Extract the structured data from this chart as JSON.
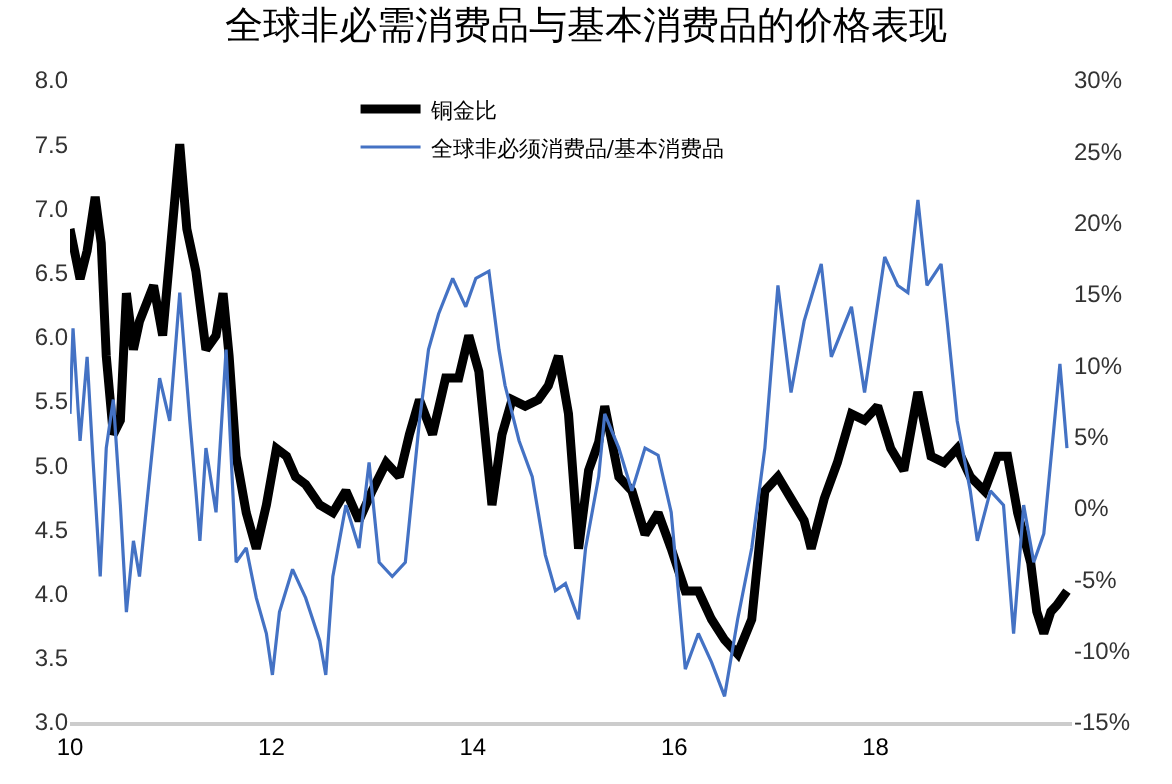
{
  "chart_data": {
    "type": "line",
    "title": "全球非必需消费品与基本消费品的价格表现",
    "xlim": [
      2010,
      2019.95
    ],
    "xticks": [
      {
        "value": 2010,
        "label": "10"
      },
      {
        "value": 2012,
        "label": "12"
      },
      {
        "value": 2014,
        "label": "14"
      },
      {
        "value": 2016,
        "label": "16"
      },
      {
        "value": 2018,
        "label": "18"
      }
    ],
    "ylim": [
      3.0,
      8.0
    ],
    "yticks": [
      {
        "value": 3,
        "label": "3.0"
      },
      {
        "value": 3.5,
        "label": "3.5"
      },
      {
        "value": 4,
        "label": "4.0"
      },
      {
        "value": 4.5,
        "label": "4.5"
      },
      {
        "value": 5,
        "label": "5.0"
      },
      {
        "value": 5.5,
        "label": "5.5"
      },
      {
        "value": 6,
        "label": "6.0"
      },
      {
        "value": 6.5,
        "label": "6.5"
      },
      {
        "value": 7,
        "label": "7.0"
      },
      {
        "value": 7.5,
        "label": "7.5"
      },
      {
        "value": 8,
        "label": "8.0"
      }
    ],
    "y2lim": [
      -15,
      30
    ],
    "y2ticks": [
      {
        "value": -15,
        "label": "-15%"
      },
      {
        "value": -10,
        "label": "-10%"
      },
      {
        "value": -5,
        "label": "-5%"
      },
      {
        "value": 0,
        "label": "0%"
      },
      {
        "value": 5,
        "label": "5%"
      },
      {
        "value": 10,
        "label": "10%"
      },
      {
        "value": 15,
        "label": "15%"
      },
      {
        "value": 20,
        "label": "20%"
      },
      {
        "value": 25,
        "label": "25%"
      },
      {
        "value": 30,
        "label": "30%"
      }
    ],
    "legend": "top",
    "series": [
      {
        "name": "铜金比",
        "color": "#000000",
        "x": [
          2010.0,
          2010.1,
          2010.17,
          2010.25,
          2010.31,
          2010.36,
          2010.43,
          2010.5,
          2010.56,
          2010.63,
          2010.69,
          2010.83,
          2010.92,
          2010.99,
          2011.09,
          2011.16,
          2011.25,
          2011.35,
          2011.45,
          2011.52,
          2011.58,
          2011.65,
          2011.75,
          2011.85,
          2011.95,
          2012.05,
          2012.15,
          2012.24,
          2012.34,
          2012.48,
          2012.61,
          2012.74,
          2012.87,
          2013.0,
          2013.14,
          2013.27,
          2013.37,
          2013.47,
          2013.6,
          2013.73,
          2013.86,
          2013.96,
          2014.06,
          2014.19,
          2014.29,
          2014.39,
          2014.52,
          2014.65,
          2014.75,
          2014.85,
          2014.95,
          2015.05,
          2015.15,
          2015.25,
          2015.31,
          2015.45,
          2015.58,
          2015.71,
          2015.84,
          2015.97,
          2016.11,
          2016.24,
          2016.37,
          2016.5,
          2016.63,
          2016.77,
          2016.9,
          2017.03,
          2017.16,
          2017.29,
          2017.36,
          2017.49,
          2017.62,
          2017.76,
          2017.89,
          2018.02,
          2018.15,
          2018.28,
          2018.42,
          2018.55,
          2018.68,
          2018.81,
          2018.94,
          2019.08,
          2019.21,
          2019.31,
          2019.41,
          2019.54,
          2019.6,
          2019.67,
          2019.74,
          2019.8,
          2019.9
        ],
        "values": [
          6.84,
          6.45,
          6.67,
          7.09,
          6.73,
          5.85,
          5.24,
          5.35,
          6.34,
          5.9,
          6.12,
          6.4,
          6.01,
          6.62,
          7.5,
          6.84,
          6.51,
          5.9,
          6.01,
          6.34,
          5.85,
          5.07,
          4.63,
          4.35,
          4.69,
          5.13,
          5.07,
          4.91,
          4.85,
          4.69,
          4.63,
          4.8,
          4.57,
          4.8,
          5.02,
          4.91,
          5.24,
          5.51,
          5.24,
          5.68,
          5.68,
          6.01,
          5.73,
          4.69,
          5.24,
          5.51,
          5.46,
          5.51,
          5.62,
          5.85,
          5.4,
          4.35,
          4.96,
          5.18,
          5.46,
          4.91,
          4.8,
          4.46,
          4.63,
          4.35,
          4.02,
          4.02,
          3.8,
          3.64,
          3.53,
          3.8,
          4.8,
          4.91,
          4.74,
          4.57,
          4.35,
          4.74,
          5.02,
          5.4,
          5.35,
          5.46,
          5.13,
          4.96,
          5.57,
          5.07,
          5.02,
          5.13,
          4.91,
          4.8,
          5.07,
          5.07,
          4.63,
          4.24,
          3.86,
          3.69,
          3.86,
          3.91,
          4.02
        ]
      },
      {
        "name": "全球非必须消费品/基本消费品",
        "color": "#4472c4",
        "axis": "y2",
        "x": [
          2010.0,
          2010.03,
          2010.1,
          2010.17,
          2010.23,
          2010.3,
          2010.36,
          2010.43,
          2010.5,
          2010.56,
          2010.63,
          2010.69,
          2010.79,
          2010.89,
          2010.99,
          2011.09,
          2011.19,
          2011.25,
          2011.29,
          2011.35,
          2011.45,
          2011.55,
          2011.65,
          2011.75,
          2011.85,
          2011.95,
          2012.01,
          2012.08,
          2012.21,
          2012.34,
          2012.48,
          2012.54,
          2012.61,
          2012.74,
          2012.87,
          2012.97,
          2013.07,
          2013.2,
          2013.33,
          2013.47,
          2013.56,
          2013.66,
          2013.8,
          2013.93,
          2014.03,
          2014.16,
          2014.26,
          2014.32,
          2014.46,
          2014.59,
          2014.72,
          2014.82,
          2014.92,
          2015.05,
          2015.12,
          2015.25,
          2015.31,
          2015.45,
          2015.58,
          2015.71,
          2015.84,
          2015.97,
          2016.11,
          2016.24,
          2016.37,
          2016.5,
          2016.63,
          2016.77,
          2016.9,
          2017.03,
          2017.16,
          2017.29,
          2017.46,
          2017.56,
          2017.76,
          2017.89,
          2018.09,
          2018.22,
          2018.32,
          2018.42,
          2018.51,
          2018.65,
          2018.71,
          2018.81,
          2018.94,
          2019.01,
          2019.14,
          2019.27,
          2019.37,
          2019.47,
          2019.57,
          2019.67,
          2019.77,
          2019.83,
          2019.9
        ],
        "values": [
          6.6,
          12.6,
          4.7,
          10.6,
          3.2,
          -4.8,
          4.2,
          7.6,
          0.2,
          -7.3,
          -2.3,
          -4.8,
          2.2,
          9.1,
          6.1,
          15.1,
          6.1,
          1.2,
          -2.3,
          4.2,
          -0.3,
          11.1,
          -3.8,
          -2.8,
          -6.3,
          -8.8,
          -11.7,
          -7.3,
          -4.3,
          -6.3,
          -9.3,
          -11.7,
          -4.8,
          0.2,
          -2.8,
          3.2,
          -3.8,
          -4.8,
          -3.8,
          6.1,
          11.1,
          13.6,
          16.1,
          14.1,
          16.1,
          16.6,
          11.1,
          8.6,
          4.7,
          2.2,
          -3.3,
          -5.8,
          -5.3,
          -7.8,
          -2.8,
          2.2,
          6.6,
          4.2,
          1.2,
          4.2,
          3.7,
          -0.3,
          -11.3,
          -8.8,
          -10.8,
          -13.2,
          -7.8,
          -2.8,
          4.2,
          15.6,
          8.1,
          13.1,
          17.1,
          10.6,
          14.1,
          8.1,
          17.6,
          15.6,
          15.1,
          21.6,
          15.6,
          17.1,
          13.1,
          6.1,
          1.2,
          -2.3,
          1.2,
          0.2,
          -8.8,
          0.2,
          -3.8,
          -1.8,
          5.6,
          10.1,
          4.2
        ]
      }
    ]
  }
}
